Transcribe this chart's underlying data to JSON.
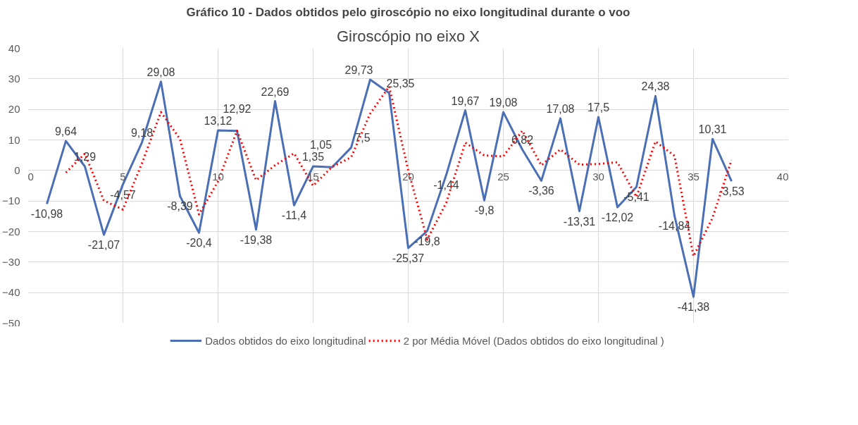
{
  "chart_data": {
    "type": "line",
    "title": "Giroscópio no eixo X",
    "annotations": [
      "Gráfico 10 - Dados obtidos pelo giroscópio no eixo longitudinal durante o voo"
    ],
    "xlim": [
      0,
      40
    ],
    "xticks": [
      0,
      5,
      10,
      15,
      20,
      25,
      30,
      35,
      40
    ],
    "ylim": [
      -50,
      40
    ],
    "yticks": [
      -50,
      -40,
      -30,
      -20,
      -10,
      0,
      10,
      20,
      30,
      40
    ],
    "grid": true,
    "legend": "bottom",
    "series": [
      {
        "name": "Dados obtidos do eixo longitudinal",
        "color": "#4a6fb5",
        "line_style": "solid",
        "x": [
          1,
          2,
          3,
          4,
          5,
          6,
          7,
          8,
          9,
          10,
          11,
          12,
          13,
          14,
          15,
          16,
          17,
          18,
          19,
          20,
          21,
          22,
          23,
          24,
          25,
          26,
          27,
          28,
          29,
          30,
          31,
          32,
          33,
          34,
          35,
          36,
          37
        ],
        "values": [
          -10.98,
          9.64,
          1.29,
          -21.07,
          -4.57,
          9.18,
          29.08,
          -8.39,
          -20.4,
          13.12,
          12.92,
          -19.38,
          22.69,
          -11.4,
          1.35,
          1.05,
          7.5,
          29.73,
          25.35,
          -25.37,
          -19.8,
          -1.44,
          19.67,
          -9.8,
          19.08,
          6.82,
          -3.36,
          17.08,
          -13.31,
          17.5,
          -12.02,
          -5.41,
          24.38,
          -14.84,
          -41.38,
          10.31,
          -3.53
        ],
        "value_labels": [
          "-10,98",
          "9,64",
          "1,29",
          "-21,07",
          "-4,57",
          "9,18",
          "29,08",
          "-8,39",
          "-20,4",
          "13,12",
          "12,92",
          "-19,38",
          "22,69",
          "-11,4",
          "1,35",
          "1,05",
          "7,5",
          "29,73",
          "25,35",
          "-25,37",
          "-19,8",
          "-1,44",
          "19,67",
          "-9,8",
          "19,08",
          "6,82",
          "-3,36",
          "17,08",
          "-13,31",
          "17,5",
          "-12,02",
          "-5,41",
          "24,38",
          "-14,84",
          "-41,38",
          "10,31",
          "-3,53"
        ]
      },
      {
        "name": "2 por Média Móvel (Dados obtidos do eixo longitudinal )",
        "color": "#ff0000",
        "line_style": "dotted",
        "x": [
          2,
          3,
          4,
          5,
          6,
          7,
          8,
          9,
          10,
          11,
          12,
          13,
          14,
          15,
          16,
          17,
          18,
          19,
          20,
          21,
          22,
          23,
          24,
          25,
          26,
          27,
          28,
          29,
          30,
          31,
          32,
          33,
          34,
          35,
          36,
          37
        ],
        "values": [
          -0.7,
          5.5,
          -9.9,
          -12.8,
          2.3,
          19.1,
          10.3,
          -14.4,
          -3.6,
          13.0,
          -3.2,
          1.7,
          5.6,
          -5.0,
          1.2,
          4.3,
          18.6,
          27.5,
          0.0,
          -22.6,
          -10.6,
          9.1,
          4.9,
          4.6,
          13.0,
          1.7,
          6.9,
          1.9,
          2.1,
          2.7,
          -8.7,
          9.5,
          4.8,
          -28.1,
          -15.5,
          3.4
        ]
      }
    ]
  }
}
